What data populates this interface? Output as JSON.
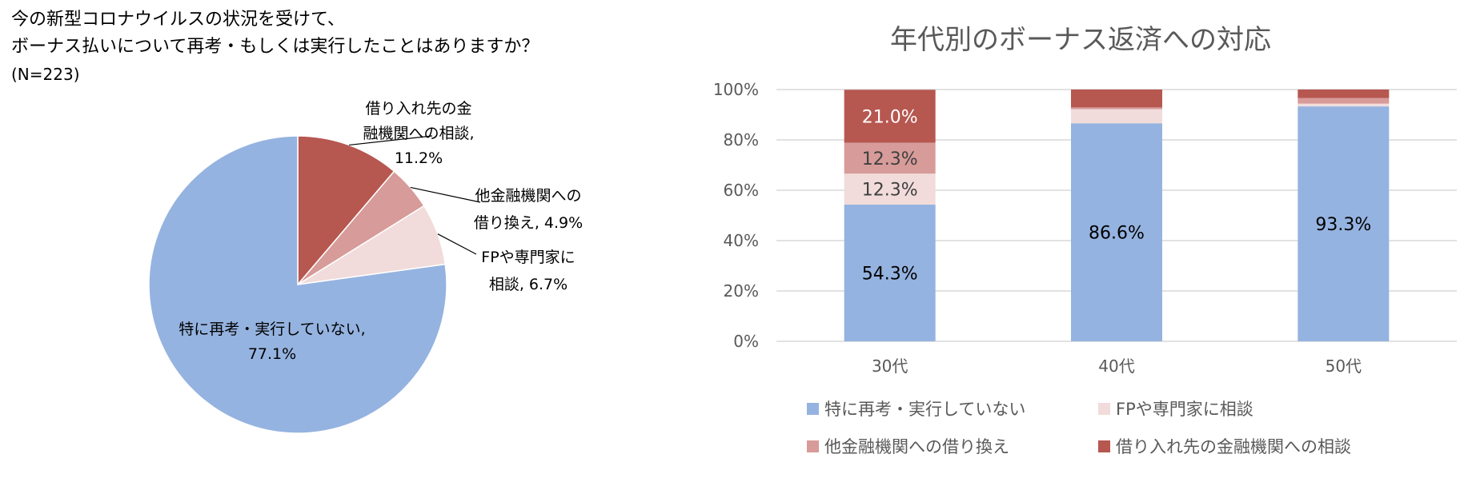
{
  "left_chart": {
    "question_line1": "今の新型コロナウイルスの状況を受けて、",
    "question_line2": "ボーナス払いについて再考・もしくは実行したことはありますか？",
    "sample_size": "(N=223)"
  },
  "right_chart": {
    "title": "年代別のボーナス返済への対応"
  },
  "colors": {
    "none": "#95B3E0",
    "fp": "#F1DCDB",
    "other_bank": "#D79B99",
    "lender": "#B65750",
    "grid": "#D9D9D9",
    "axis_text": "#595959"
  },
  "chart_data": [
    {
      "type": "pie",
      "title": "今の新型コロナウイルスの状況を受けて、ボーナス払いについて再考・もしくは実行したことはありますか？",
      "subtitle": "(N=223)",
      "slices": [
        {
          "label": "借り入れ先の金融機関への相談",
          "value": 11.2,
          "label_lines": [
            "借り入れ先の金",
            "融機関への相談,",
            "11.2%"
          ],
          "color": "#B65750"
        },
        {
          "label": "他金融機関への借り換え",
          "value": 4.9,
          "label_lines": [
            "他金融機関への",
            "借り換え, 4.9%"
          ],
          "color": "#D79B99"
        },
        {
          "label": "FPや専門家に相談",
          "value": 6.7,
          "label_lines": [
            "FPや専門家に",
            "相談, 6.7%"
          ],
          "color": "#F1DCDB"
        },
        {
          "label": "特に再考・実行していない",
          "value": 77.1,
          "label_lines": [
            "特に再考・実行していない,",
            "77.1%"
          ],
          "color": "#95B3E0"
        }
      ]
    },
    {
      "type": "bar",
      "stacked": true,
      "title": "年代別のボーナス返済への対応",
      "categories": [
        "30代",
        "40代",
        "50代"
      ],
      "ylim": [
        0,
        100
      ],
      "yticks": [
        "0%",
        "20%",
        "40%",
        "60%",
        "80%",
        "100%"
      ],
      "grid": true,
      "legend_position": "bottom",
      "series": [
        {
          "name": "特に再考・実行していない",
          "color": "#95B3E0",
          "values": [
            54.3,
            86.6,
            93.3
          ],
          "labels": [
            "54.3%",
            "86.6%",
            "93.3%"
          ]
        },
        {
          "name": "FPや専門家に相談",
          "color": "#F1DCDB",
          "values": [
            12.3,
            5.6,
            1.1
          ],
          "labels": [
            "12.3%",
            "",
            ""
          ]
        },
        {
          "name": "他金融機関への借り換え",
          "color": "#D79B99",
          "values": [
            12.3,
            0.7,
            2.2
          ],
          "labels": [
            "12.3%",
            "",
            ""
          ]
        },
        {
          "name": "借り入れ先の金融機関への相談",
          "color": "#B65750",
          "values": [
            21.0,
            7.1,
            3.4
          ],
          "labels": [
            "21.0%",
            "",
            ""
          ]
        }
      ],
      "legend_order": [
        0,
        1,
        2,
        3
      ]
    }
  ]
}
